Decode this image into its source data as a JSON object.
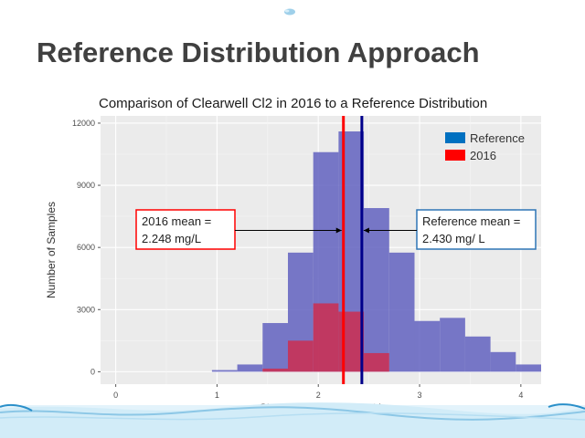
{
  "slide": {
    "title": "Reference Distribution Approach"
  },
  "chart_data": {
    "type": "bar",
    "title": "Comparison of Clearwell Cl2 in 2016 to a Reference Distribution",
    "xlabel": "Clearwell Chlorine (mg/L)",
    "ylabel": "Number of Samples",
    "xlim": [
      -0.15,
      4.2
    ],
    "ylim": [
      -600,
      12350
    ],
    "x_ticks": [
      0,
      1,
      2,
      3,
      4
    ],
    "y_ticks": [
      0,
      3000,
      6000,
      9000,
      12000
    ],
    "grid": true,
    "legend_position": "top-right",
    "bin_width": 0.25,
    "series": [
      {
        "name": "Reference",
        "color": "#5b5bbd",
        "bins": [
          {
            "x0": 0.95,
            "x1": 1.2,
            "y": 80
          },
          {
            "x0": 1.2,
            "x1": 1.45,
            "y": 350
          },
          {
            "x0": 1.45,
            "x1": 1.7,
            "y": 2350
          },
          {
            "x0": 1.7,
            "x1": 1.95,
            "y": 5750
          },
          {
            "x0": 1.95,
            "x1": 2.2,
            "y": 10600
          },
          {
            "x0": 2.2,
            "x1": 2.45,
            "y": 11600
          },
          {
            "x0": 2.45,
            "x1": 2.7,
            "y": 7900
          },
          {
            "x0": 2.7,
            "x1": 2.95,
            "y": 5750
          },
          {
            "x0": 2.95,
            "x1": 3.2,
            "y": 2450
          },
          {
            "x0": 3.2,
            "x1": 3.45,
            "y": 2600
          },
          {
            "x0": 3.45,
            "x1": 3.7,
            "y": 1700
          },
          {
            "x0": 3.7,
            "x1": 3.95,
            "y": 950
          },
          {
            "x0": 3.95,
            "x1": 4.2,
            "y": 350
          }
        ]
      },
      {
        "name": "2016",
        "color": "#d12b4a",
        "bins": [
          {
            "x0": 1.45,
            "x1": 1.7,
            "y": 150
          },
          {
            "x0": 1.7,
            "x1": 1.95,
            "y": 1500
          },
          {
            "x0": 1.95,
            "x1": 2.2,
            "y": 3300
          },
          {
            "x0": 2.2,
            "x1": 2.45,
            "y": 2900
          },
          {
            "x0": 2.45,
            "x1": 2.7,
            "y": 900
          }
        ]
      }
    ],
    "legend": [
      {
        "label": "Reference",
        "color": "#0070c0"
      },
      {
        "label": "2016",
        "color": "#ff0000"
      }
    ],
    "mean_lines": [
      {
        "x": 2.248,
        "color": "#ff0000"
      },
      {
        "x": 2.43,
        "color": "#00008b"
      }
    ],
    "annotations": [
      {
        "line1": "2016 mean =",
        "line2": "2.248 mg/L",
        "border": "#ff0000",
        "arrow_to": 2.248
      },
      {
        "line1": "Reference mean =",
        "line2": "2.430 mg/ L",
        "border": "#2e75b6",
        "arrow_to": 2.43
      }
    ]
  }
}
